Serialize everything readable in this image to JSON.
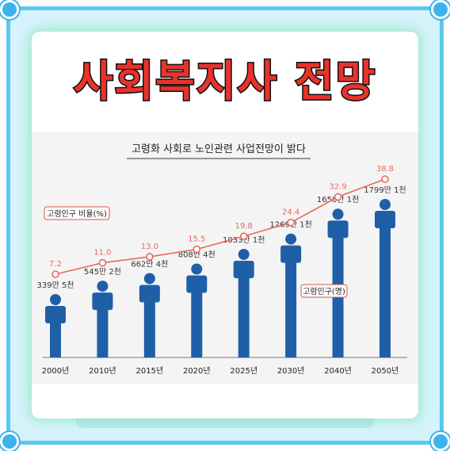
{
  "headline": "사회복지사 전망",
  "chart_data": {
    "type": "bar",
    "title": "고령화 사회로 노인관련 사업전망이 밝다",
    "categories": [
      "2000년",
      "2010년",
      "2015년",
      "2020년",
      "2025년",
      "2030년",
      "2040년",
      "2050년"
    ],
    "series": [
      {
        "name": "고령인구(명)",
        "type": "bar",
        "values": [
          3395000,
          5452000,
          6624000,
          8084000,
          10331000,
          12691000,
          16501000,
          17991000
        ],
        "labels": [
          "339만 5천",
          "545만 2천",
          "662만 4천",
          "808만 4천",
          "1033만 1천",
          "1269만 1천",
          "1650만 1천",
          "1799만 1천"
        ],
        "color": "#1f5fa8"
      },
      {
        "name": "고령인구 비율(%)",
        "type": "line",
        "values": [
          7.2,
          11.0,
          13.0,
          15.5,
          19.8,
          24.4,
          32.9,
          38.8
        ],
        "labels": [
          "7.2",
          "11.0",
          "13.0",
          "15.5",
          "19.8",
          "24.4",
          "32.9",
          "38.8"
        ],
        "color": "#e86a5c"
      }
    ],
    "legend_placement": "inline"
  }
}
